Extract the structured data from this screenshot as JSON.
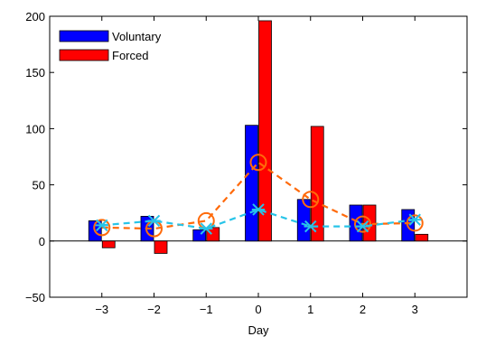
{
  "chart_data": {
    "type": "bar",
    "title": "",
    "xlabel": "Day",
    "ylabel": "",
    "categories": [
      "−3",
      "−2",
      "−1",
      "0",
      "1",
      "2",
      "3"
    ],
    "x": [
      -3,
      -2,
      -1,
      0,
      1,
      2,
      3
    ],
    "xlim": [
      -4,
      4
    ],
    "ylim": [
      -50,
      200
    ],
    "yticks": [
      -50,
      0,
      50,
      100,
      150,
      200
    ],
    "ytick_labels": [
      "−50",
      "0",
      "50",
      "100",
      "150",
      "200"
    ],
    "grid": false,
    "legend_position": "top-left",
    "series": [
      {
        "name": "Voluntary",
        "kind": "bar",
        "color": "#0000ff",
        "values": [
          18,
          22,
          10,
          103,
          37,
          32,
          28
        ]
      },
      {
        "name": "Forced",
        "kind": "bar",
        "color": "#ff0000",
        "values": [
          -6,
          -11,
          12,
          196,
          102,
          32,
          6
        ]
      },
      {
        "kind": "line",
        "marker": "circle",
        "dash": "dashed",
        "color": "#ff6a0a",
        "values": [
          12,
          11,
          18,
          70,
          37,
          15,
          16
        ]
      },
      {
        "kind": "line",
        "marker": "x",
        "dash": "dashed",
        "color": "#27c4e8",
        "values": [
          14,
          18,
          11,
          28,
          13,
          13,
          19
        ]
      }
    ]
  }
}
